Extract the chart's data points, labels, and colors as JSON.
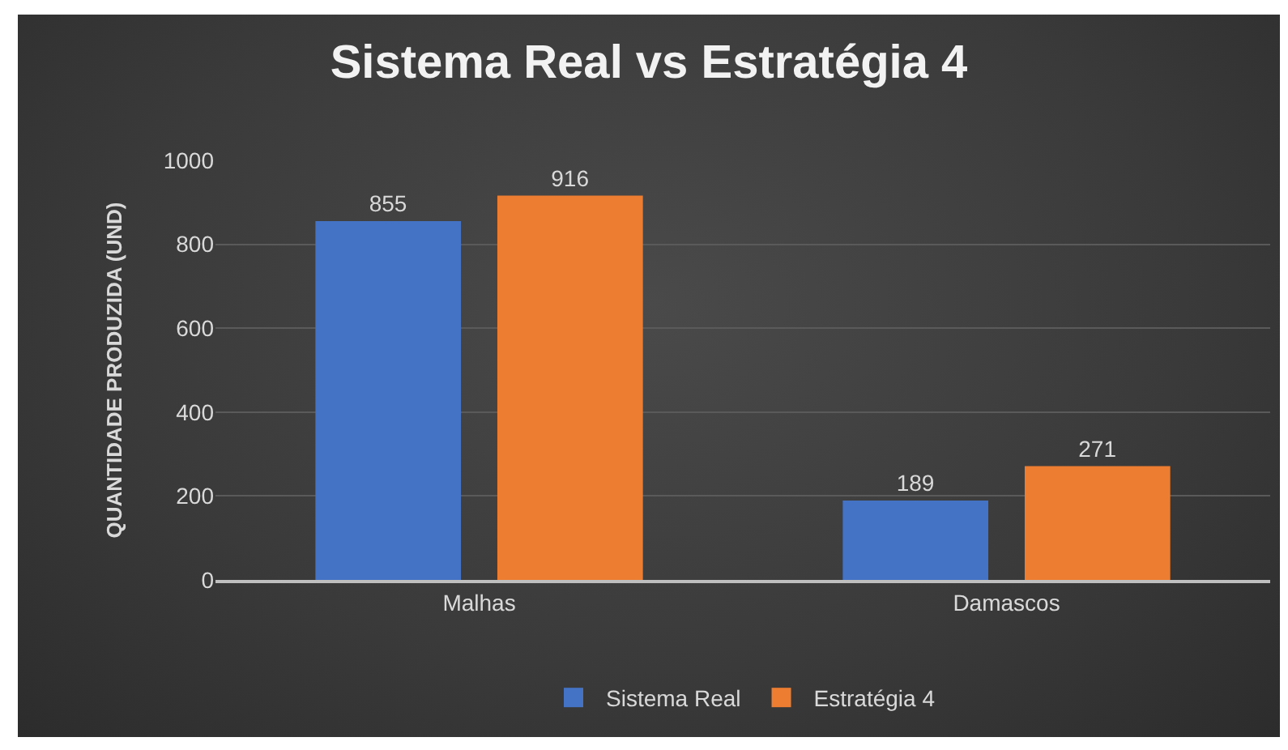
{
  "chart_data": {
    "type": "bar",
    "title": "Sistema Real vs Estratégia 4",
    "ylabel": "QUANTIDADE PRODUZIDA (UND)",
    "categories": [
      "Malhas",
      "Damascos"
    ],
    "series": [
      {
        "name": "Sistema Real",
        "color": "#4472c4",
        "values": [
          855,
          189
        ]
      },
      {
        "name": "Estratégia 4",
        "color": "#ed7d31",
        "values": [
          916,
          271
        ]
      }
    ],
    "ylim": [
      0,
      1000
    ],
    "yticks": [
      0,
      200,
      400,
      600,
      800,
      1000
    ],
    "grid": "y",
    "legend": "bottom",
    "data_labels": true
  }
}
